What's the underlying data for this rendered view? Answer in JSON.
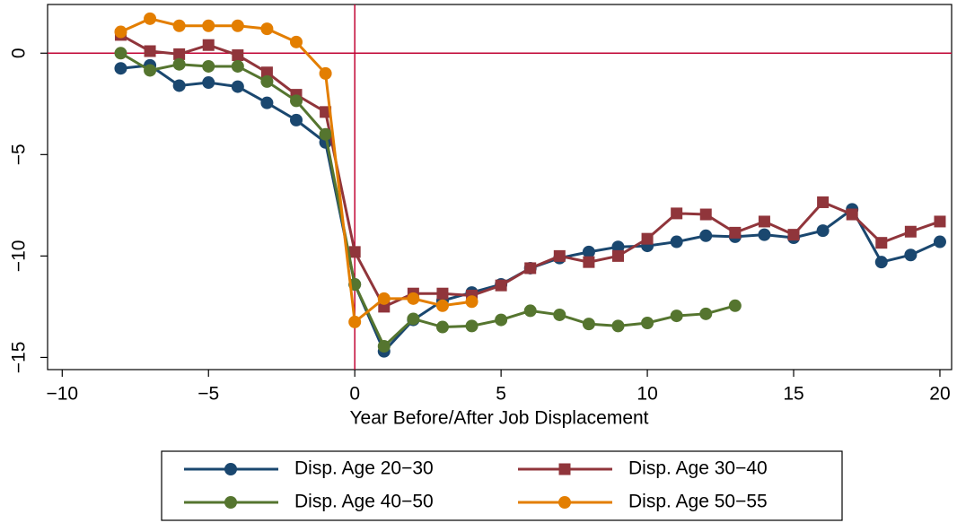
{
  "chart_data": {
    "type": "line",
    "xlabel": "Year Before/After Job Displacement",
    "x": [
      -8,
      -7,
      -6,
      -5,
      -4,
      -3,
      -2,
      -1,
      0,
      1,
      2,
      3,
      4,
      5,
      6,
      7,
      8,
      9,
      10,
      11,
      12,
      13,
      14,
      15,
      16,
      17,
      18,
      19,
      20
    ],
    "series": [
      {
        "name": "Disp. Age 20−30",
        "color": "#1a476f",
        "marker": "circle",
        "values": [
          -0.75,
          -0.6,
          -1.6,
          -1.45,
          -1.65,
          -2.45,
          -3.3,
          -4.4,
          -11.4,
          -14.7,
          -13.15,
          -12.2,
          -11.8,
          -11.4,
          -10.6,
          -10.1,
          -9.8,
          -9.55,
          -9.5,
          -9.3,
          -9.0,
          -9.05,
          -8.95,
          -9.1,
          -8.75,
          -7.7,
          -10.3,
          -9.95,
          -9.3
        ]
      },
      {
        "name": "Disp. Age 30−40",
        "color": "#90353b",
        "marker": "square",
        "values": [
          0.9,
          0.1,
          -0.05,
          0.4,
          -0.1,
          -0.95,
          -2.05,
          -2.9,
          -9.8,
          -12.5,
          -11.85,
          -11.85,
          -11.95,
          -11.45,
          -10.6,
          -10.0,
          -10.3,
          -10.0,
          -9.15,
          -7.9,
          -7.95,
          -8.85,
          -8.3,
          -8.95,
          -7.35,
          -7.95,
          -9.35,
          -8.8,
          -8.3
        ]
      },
      {
        "name": "Disp. Age 40−50",
        "color": "#55752f",
        "marker": "circle",
        "values": [
          0,
          -0.85,
          -0.55,
          -0.65,
          -0.65,
          -1.4,
          -2.35,
          -4.0,
          -11.4,
          -14.45,
          -13.1,
          -13.5,
          -13.45,
          -13.15,
          -12.7,
          -12.9,
          -13.35,
          -13.45,
          -13.3,
          -12.95,
          -12.85,
          -12.45,
          null,
          null,
          null,
          null,
          null,
          null,
          null
        ]
      },
      {
        "name": "Disp. Age 50−55",
        "color": "#e37e00",
        "marker": "circle",
        "values": [
          1.05,
          1.7,
          1.35,
          1.35,
          1.35,
          1.2,
          0.55,
          -1.0,
          -13.25,
          -12.1,
          -12.1,
          -12.45,
          -12.25,
          null,
          null,
          null,
          null,
          null,
          null,
          null,
          null,
          null,
          null,
          null,
          null,
          null,
          null,
          null,
          null
        ]
      }
    ],
    "xlim": [
      -10.5,
      20.4
    ],
    "ylim": [
      -15.6,
      2.4
    ],
    "xticks": [
      {
        "value": -10,
        "label": "−10"
      },
      {
        "value": -5,
        "label": "−5"
      },
      0,
      5,
      10,
      15,
      20
    ],
    "yticks": [
      {
        "value": -15,
        "label": "−15"
      },
      {
        "value": -10,
        "label": "−10"
      },
      {
        "value": -5,
        "label": "−5"
      },
      0
    ],
    "reference_lines": {
      "x": 0,
      "y": 0,
      "color": "#c10534"
    },
    "legend": "bottom"
  }
}
